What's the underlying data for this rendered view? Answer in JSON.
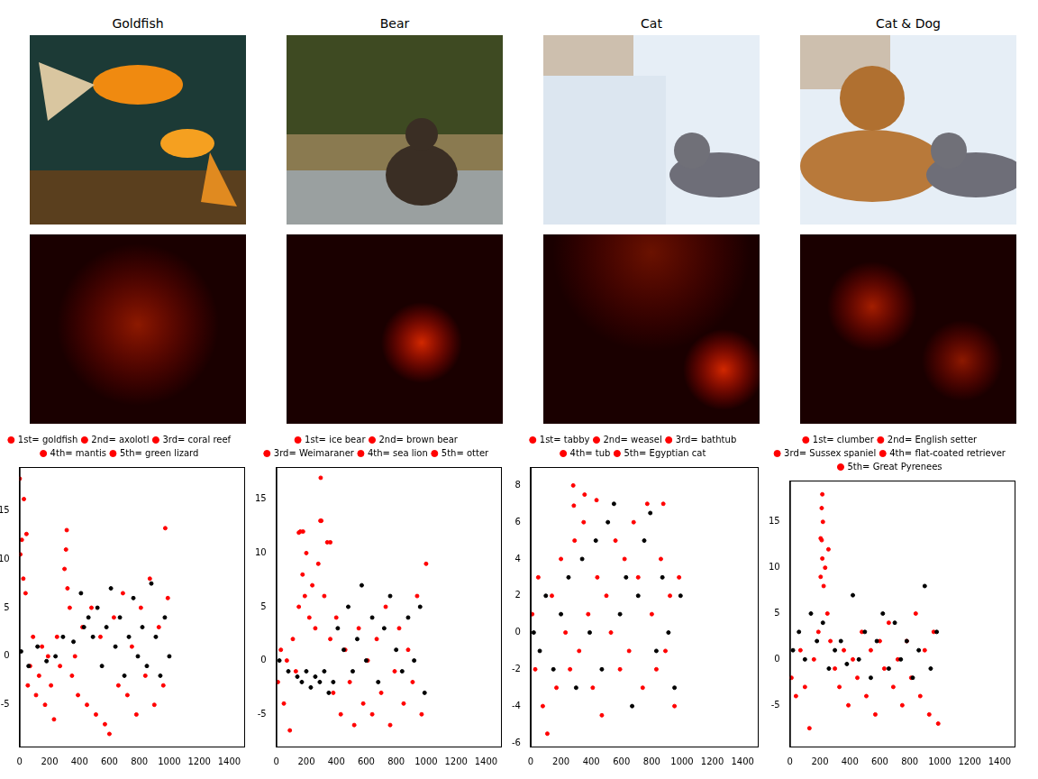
{
  "chart_data": [
    {
      "type": "scatter",
      "title": "Goldfish",
      "grid": false,
      "legend": "top",
      "marker": "dot",
      "xlim": [
        0,
        1500
      ],
      "xticks": [
        0,
        200,
        400,
        600,
        800,
        1000,
        1200,
        1400
      ],
      "ylim": [
        -9.3,
        19.5
      ],
      "yticks": [
        -5,
        0,
        5,
        10,
        15
      ],
      "series": [
        {
          "name": "1st= goldfish",
          "color": "#ff0000",
          "x": [
            1
          ],
          "values": [
            18.3
          ]
        },
        {
          "name": "2nd= axolotl",
          "color": "#ff0000",
          "x": [
            29
          ],
          "values": [
            16.2
          ]
        },
        {
          "name": "3rd= coral reef",
          "color": "#ff0000",
          "x": [
            973
          ],
          "values": [
            13.2
          ]
        },
        {
          "name": "4th= mantis",
          "color": "#ff0000",
          "x": [
            315
          ],
          "values": [
            13.0
          ]
        },
        {
          "name": "5th= green lizard",
          "color": "#ff0000",
          "x": [
            46
          ],
          "values": [
            12.6
          ]
        },
        {
          "color": "#000000",
          "x": [
            10,
            60,
            120,
            180,
            240,
            290,
            360,
            410,
            430,
            460,
            490,
            520,
            550,
            580,
            610,
            640,
            670,
            700,
            730,
            760,
            790,
            820,
            850,
            880,
            910,
            940,
            970,
            1000
          ],
          "values": [
            0.5,
            -1,
            1,
            -0.5,
            0,
            2,
            1.5,
            6.5,
            3,
            4,
            2,
            5,
            -1,
            3,
            7,
            1,
            4,
            -2,
            2,
            6,
            0,
            3,
            -1,
            7.5,
            2,
            -2,
            4,
            0
          ]
        },
        {
          "color": "#ff0000",
          "x": [
            5,
            15,
            25,
            40,
            55,
            70,
            90,
            110,
            130,
            150,
            170,
            190,
            210,
            230,
            250,
            270,
            300,
            310,
            320,
            335,
            350,
            370,
            390,
            420,
            450,
            480,
            510,
            540,
            570,
            600,
            630,
            660,
            690,
            720,
            750,
            780,
            810,
            840,
            870,
            900,
            930,
            960,
            990
          ],
          "values": [
            10.5,
            12,
            8,
            6.5,
            -3,
            -1,
            2,
            -4,
            -2,
            1,
            -5,
            0,
            -3,
            -6.5,
            2,
            -1,
            9,
            11,
            7,
            5,
            -2,
            0,
            -4,
            3,
            -5,
            5,
            -6,
            2,
            -7,
            -8,
            4,
            -3,
            6.5,
            -4,
            1,
            -6,
            5,
            -2,
            8,
            -5,
            3,
            -3,
            6
          ]
        }
      ]
    },
    {
      "type": "scatter",
      "title": "Bear",
      "grid": false,
      "legend": "top",
      "marker": "dot",
      "xlim": [
        0,
        1500
      ],
      "xticks": [
        0,
        200,
        400,
        600,
        800,
        1000,
        1200,
        1400
      ],
      "ylim": [
        -8,
        18
      ],
      "yticks": [
        -5,
        0,
        5,
        10,
        15
      ],
      "series": [
        {
          "name": "1st= ice bear",
          "color": "#ff0000",
          "x": [
            296
          ],
          "values": [
            17.0
          ]
        },
        {
          "name": "2nd= brown bear",
          "color": "#ff0000",
          "x": [
            294
          ],
          "values": [
            13.0
          ]
        },
        {
          "name": "3rd= Weimaraner",
          "color": "#ff0000",
          "x": [
            178
          ],
          "values": [
            12.0
          ]
        },
        {
          "name": "4th= sea lion",
          "color": "#ff0000",
          "x": [
            150
          ],
          "values": [
            11.9
          ]
        },
        {
          "name": "5th= otter",
          "color": "#ff0000",
          "x": [
            360
          ],
          "values": [
            11.0
          ]
        },
        {
          "color": "#000000",
          "x": [
            20,
            80,
            140,
            170,
            200,
            230,
            260,
            290,
            320,
            350,
            380,
            410,
            450,
            480,
            510,
            540,
            570,
            600,
            640,
            680,
            720,
            760,
            800,
            840,
            880,
            920,
            960,
            990
          ],
          "values": [
            0,
            -1,
            -1.5,
            -2,
            -1,
            -2.5,
            -1.5,
            -2,
            -1,
            -3,
            -2,
            3,
            1,
            5,
            -1,
            2,
            7,
            0,
            4,
            -2,
            3,
            6,
            1,
            -1,
            4,
            0,
            5,
            -3
          ]
        },
        {
          "color": "#ff0000",
          "x": [
            10,
            30,
            50,
            70,
            90,
            110,
            130,
            150,
            160,
            175,
            190,
            200,
            220,
            240,
            260,
            280,
            300,
            320,
            340,
            360,
            380,
            400,
            430,
            460,
            490,
            520,
            550,
            580,
            610,
            640,
            670,
            700,
            730,
            760,
            790,
            820,
            850,
            880,
            910,
            940,
            970,
            1000
          ],
          "values": [
            -2,
            1,
            -4,
            0,
            -6.5,
            2,
            -1,
            5,
            12,
            8,
            6,
            10,
            4,
            7,
            3,
            9,
            13,
            6,
            11,
            2,
            -3,
            4,
            -5,
            1,
            -2,
            -6,
            3,
            -4,
            0,
            -5,
            2,
            -3,
            5,
            -6,
            -1,
            3,
            -4,
            1,
            -2,
            6,
            -5,
            9
          ]
        }
      ]
    },
    {
      "type": "scatter",
      "title": "Cat",
      "grid": false,
      "legend": "top",
      "marker": "dot",
      "xlim": [
        0,
        1500
      ],
      "xticks": [
        0,
        200,
        400,
        600,
        800,
        1000,
        1200,
        1400
      ],
      "ylim": [
        -6.2,
        9
      ],
      "yticks": [
        -6,
        -4,
        -2,
        0,
        2,
        4,
        6,
        8
      ],
      "series": [
        {
          "name": "1st= tabby",
          "color": "#ff0000",
          "x": [
            281
          ],
          "values": [
            8.0
          ]
        },
        {
          "name": "2nd= weasel",
          "color": "#ff0000",
          "x": [
            356
          ],
          "values": [
            7.5
          ]
        },
        {
          "name": "3rd= bathtub",
          "color": "#ff0000",
          "x": [
            435
          ],
          "values": [
            7.2
          ]
        },
        {
          "name": "4th= tub",
          "color": "#ff0000",
          "x": [
            876
          ],
          "values": [
            7.0
          ]
        },
        {
          "name": "5th= Egyptian cat",
          "color": "#ff0000",
          "x": [
            285
          ],
          "values": [
            6.9
          ]
        },
        {
          "color": "#000000",
          "x": [
            20,
            60,
            100,
            150,
            200,
            250,
            300,
            340,
            390,
            430,
            470,
            510,
            550,
            590,
            630,
            670,
            710,
            750,
            790,
            830,
            870,
            910,
            950,
            990
          ],
          "values": [
            0,
            -1,
            2,
            -2,
            1,
            3,
            -3,
            4,
            0,
            5,
            -2,
            6,
            7,
            1,
            3,
            -4,
            2,
            5,
            6.5,
            -1,
            3,
            0,
            -3,
            2
          ]
        },
        {
          "color": "#ff0000",
          "x": [
            10,
            30,
            50,
            80,
            110,
            140,
            170,
            200,
            230,
            260,
            290,
            320,
            350,
            380,
            410,
            440,
            470,
            500,
            530,
            560,
            590,
            620,
            650,
            680,
            710,
            740,
            770,
            800,
            830,
            860,
            890,
            920,
            950,
            980
          ],
          "values": [
            1,
            -2,
            3,
            -4,
            -5.5,
            2,
            -3,
            4,
            0,
            -2,
            5,
            -1,
            6,
            1,
            -3,
            3,
            -4.5,
            2,
            0,
            5,
            -2,
            4,
            -1,
            6,
            3,
            -3,
            7,
            1,
            -2,
            4,
            -1,
            2,
            -4,
            3
          ]
        }
      ]
    },
    {
      "type": "scatter",
      "title": "Cat & Dog",
      "grid": false,
      "legend": "top",
      "marker": "dot",
      "xlim": [
        0,
        1500
      ],
      "xticks": [
        0,
        200,
        400,
        600,
        800,
        1000,
        1200,
        1400
      ],
      "ylim": [
        -9.5,
        19.5
      ],
      "yticks": [
        -5,
        0,
        5,
        10,
        15
      ],
      "series": [
        {
          "name": "1st= clumber",
          "color": "#ff0000",
          "x": [
            216
          ],
          "values": [
            18.0
          ]
        },
        {
          "name": "2nd= English setter",
          "color": "#ff0000",
          "x": [
            212
          ],
          "values": [
            16.5
          ]
        },
        {
          "name": "3rd= Sussex spaniel",
          "color": "#ff0000",
          "x": [
            220
          ],
          "values": [
            15.0
          ]
        },
        {
          "name": "4th= flat-coated retriever",
          "color": "#ff0000",
          "x": [
            205
          ],
          "values": [
            13.2
          ]
        },
        {
          "name": "5th= Great Pyrenees",
          "color": "#ff0000",
          "x": [
            257
          ],
          "values": [
            12.0
          ]
        },
        {
          "color": "#000000",
          "x": [
            20,
            60,
            100,
            140,
            180,
            220,
            260,
            300,
            340,
            380,
            420,
            460,
            500,
            540,
            580,
            620,
            660,
            700,
            740,
            780,
            820,
            860,
            900,
            940,
            980
          ],
          "values": [
            1,
            3,
            0,
            5,
            2,
            4,
            -1,
            1,
            2,
            -0.5,
            7,
            0,
            3,
            -2,
            2,
            5,
            -1,
            4,
            0,
            2,
            -2,
            1,
            8,
            -1,
            3
          ]
        },
        {
          "color": "#ff0000",
          "x": [
            10,
            40,
            70,
            100,
            130,
            160,
            190,
            205,
            212,
            216,
            225,
            235,
            250,
            270,
            300,
            330,
            360,
            390,
            420,
            450,
            480,
            510,
            540,
            570,
            600,
            630,
            660,
            690,
            720,
            750,
            780,
            810,
            840,
            870,
            900,
            930,
            960,
            990
          ],
          "values": [
            -2,
            -4,
            1,
            -3,
            -7.5,
            0,
            3,
            9,
            13,
            11,
            8,
            10,
            5,
            2,
            -1,
            -3,
            1,
            -5,
            0,
            -2,
            3,
            -4,
            1,
            -6,
            2,
            -1,
            4,
            -3,
            0,
            -5,
            2,
            -2,
            5,
            -4,
            1,
            -6,
            3,
            -7
          ]
        }
      ]
    }
  ]
}
